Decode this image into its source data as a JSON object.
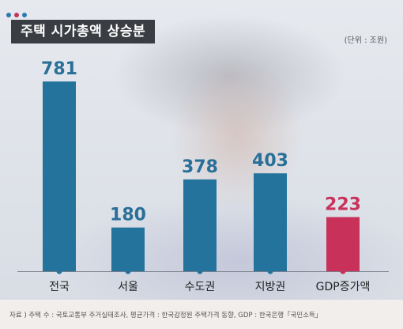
{
  "header": {
    "title": "주택 시가총액 상승분",
    "unit": "(단위 : 조원)"
  },
  "footer": {
    "source": "자료 ) 주택 수 : 국토교통부 주거실태조사, 평균가격 : 한국감정원 주택가격 동향, GDP : 한국은행「국민소득」"
  },
  "colors": {
    "dot1": "#2b7bb0",
    "dot2": "#c0395a",
    "dot3": "#2b7bb0",
    "bar_primary": "#23739d",
    "bar_accent": "#c8325a",
    "label_primary": "#2a6f98",
    "label_accent": "#c8325a"
  },
  "chart_data": {
    "type": "bar",
    "categories": [
      "전국",
      "서울",
      "수도권",
      "지방권",
      "GDP증가액"
    ],
    "values": [
      781,
      180,
      378,
      403,
      223
    ],
    "value_labels": [
      "781",
      "180",
      "378",
      "403",
      "223"
    ],
    "highlight": [
      false,
      false,
      false,
      false,
      true
    ],
    "ylim": [
      0,
      800
    ],
    "grid": false,
    "legend": "none"
  }
}
